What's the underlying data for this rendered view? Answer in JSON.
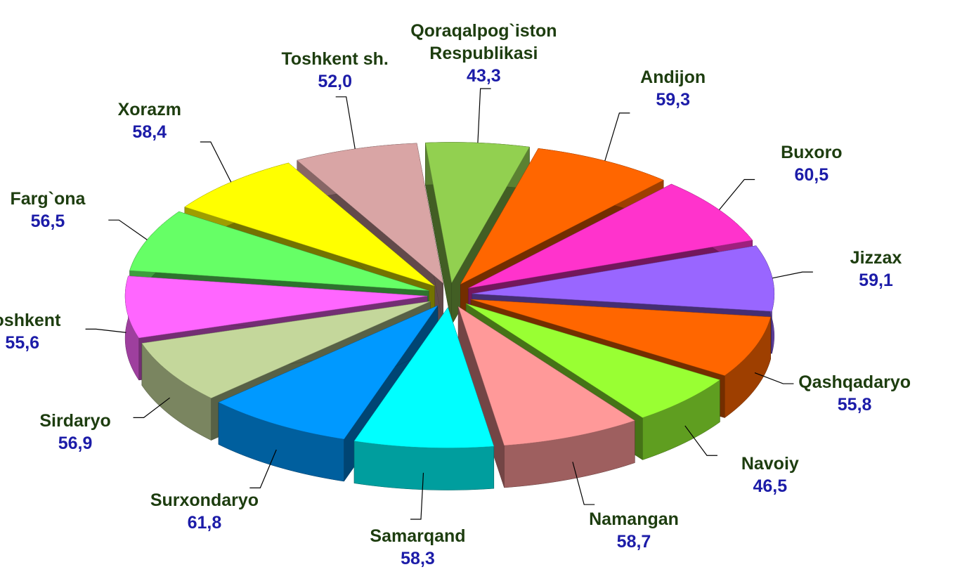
{
  "chart_data": {
    "type": "pie",
    "categories": [
      "Qoraqalpog`iston Respublikasi",
      "Andijon",
      "Buxoro",
      "Jizzax",
      "Qashqadaryo",
      "Navoiy",
      "Namangan",
      "Samarqand",
      "Surxondaryo",
      "Sirdaryo",
      "Toshkent",
      "Farg`ona",
      "Xorazm",
      "Toshkent sh."
    ],
    "values": [
      43.3,
      59.3,
      60.5,
      59.1,
      55.8,
      46.5,
      58.7,
      58.3,
      61.8,
      56.9,
      55.6,
      56.5,
      58.4,
      52.0
    ],
    "value_labels": [
      "43,3",
      "59,3",
      "60,5",
      "59,1",
      "55,8",
      "46,5",
      "58,7",
      "58,3",
      "61,8",
      "56,9",
      "55,6",
      "56,5",
      "58,4",
      "52,0"
    ],
    "colors": [
      "#92d050",
      "#ff6600",
      "#ff33cc",
      "#9966ff",
      "#ff6600",
      "#99ff33",
      "#ff9999",
      "#00ffff",
      "#0099ff",
      "#c4d79b",
      "#ff66ff",
      "#66ff66",
      "#ffff00",
      "#d9a5a5"
    ]
  }
}
